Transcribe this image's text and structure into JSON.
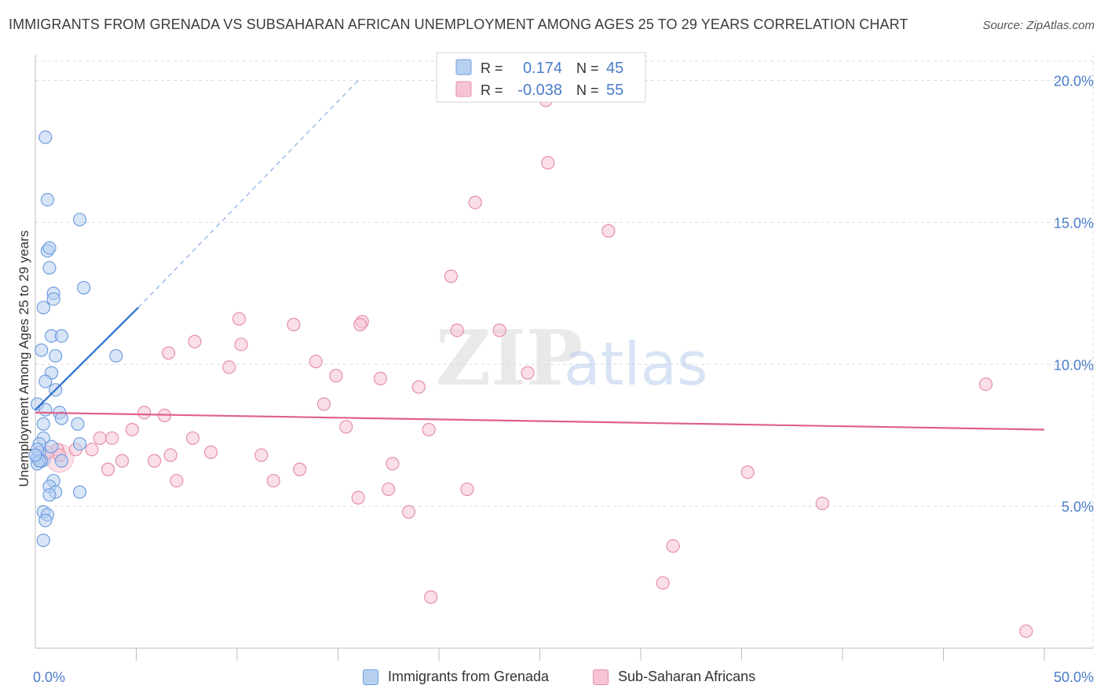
{
  "title": "IMMIGRANTS FROM GRENADA VS SUBSAHARAN AFRICAN UNEMPLOYMENT AMONG AGES 25 TO 29 YEARS CORRELATION CHART",
  "source": "Source: ZipAtlas.com",
  "watermark": {
    "zip": "ZIP",
    "atlas": "atlas"
  },
  "colors": {
    "blue_fill": "#b8d0f0",
    "blue_stroke": "#6f9ee0",
    "blue_line": "#2f6fd0",
    "pink_fill": "#f6c4d3",
    "pink_stroke": "#e58fab",
    "pink_line": "#e0608a",
    "tick_label": "#4a7cc9",
    "grid": "#dcdcdc"
  },
  "stats_legend": {
    "rows": [
      {
        "r_label": "R =",
        "r_value": "0.174",
        "n_label": "N =",
        "n_value": "45",
        "series": "blue"
      },
      {
        "r_label": "R =",
        "r_value": "-0.038",
        "n_label": "N =",
        "n_value": "55",
        "series": "pink"
      }
    ]
  },
  "bottom_legend": [
    {
      "label": "Immigrants from Grenada",
      "series": "blue"
    },
    {
      "label": "Sub-Saharan Africans",
      "series": "pink"
    }
  ],
  "chart_data": {
    "type": "scatter",
    "title": "IMMIGRANTS FROM GRENADA VS SUBSAHARAN AFRICAN UNEMPLOYMENT AMONG AGES 25 TO 29 YEARS CORRELATION CHART",
    "xlabel": "",
    "ylabel": "Unemployment Among Ages 25 to 29 years",
    "xlim": [
      0,
      50
    ],
    "ylim": [
      0,
      20.9
    ],
    "x_tick_labels": [
      "0.0%",
      "50.0%"
    ],
    "y_ticks": [
      5,
      10,
      15,
      20
    ],
    "y_tick_labels": [
      "5.0%",
      "10.0%",
      "15.0%",
      "20.0%"
    ],
    "grid": true,
    "legend_position": "top-center",
    "series": [
      {
        "name": "Immigrants from Grenada",
        "color": "#6f9ee0",
        "r": 0.174,
        "n": 45,
        "points": [
          [
            0.5,
            18.0
          ],
          [
            0.6,
            15.8
          ],
          [
            2.2,
            15.1
          ],
          [
            0.6,
            14.0
          ],
          [
            0.7,
            14.1
          ],
          [
            0.7,
            13.4
          ],
          [
            2.4,
            12.7
          ],
          [
            0.9,
            12.5
          ],
          [
            0.9,
            12.3
          ],
          [
            0.4,
            12.0
          ],
          [
            0.8,
            11.0
          ],
          [
            1.3,
            11.0
          ],
          [
            4.0,
            10.3
          ],
          [
            0.3,
            10.5
          ],
          [
            1.0,
            10.3
          ],
          [
            0.8,
            9.7
          ],
          [
            0.5,
            9.4
          ],
          [
            1.0,
            9.1
          ],
          [
            0.1,
            8.6
          ],
          [
            0.5,
            8.4
          ],
          [
            1.2,
            8.3
          ],
          [
            1.3,
            8.1
          ],
          [
            2.1,
            7.9
          ],
          [
            0.4,
            7.9
          ],
          [
            0.4,
            7.4
          ],
          [
            0.2,
            7.2
          ],
          [
            0.8,
            7.1
          ],
          [
            0.2,
            6.9
          ],
          [
            2.2,
            7.2
          ],
          [
            0.1,
            6.7
          ],
          [
            0.3,
            6.6
          ],
          [
            0.1,
            6.5
          ],
          [
            1.3,
            6.6
          ],
          [
            0.2,
            6.6
          ],
          [
            0.9,
            5.9
          ],
          [
            0.7,
            5.7
          ],
          [
            1.0,
            5.5
          ],
          [
            0.7,
            5.4
          ],
          [
            2.2,
            5.5
          ],
          [
            0.4,
            4.8
          ],
          [
            0.6,
            4.7
          ],
          [
            0.5,
            4.5
          ],
          [
            0.4,
            3.8
          ],
          [
            0.1,
            7.0
          ],
          [
            0.0,
            6.8
          ]
        ],
        "trend": {
          "x": [
            0.0,
            5.1
          ],
          "y": [
            8.4,
            12.0
          ]
        },
        "trend_extension": {
          "x": [
            5.1,
            16.0
          ],
          "y": [
            12.0,
            20.0
          ]
        }
      },
      {
        "name": "Sub-Saharan Africans",
        "color": "#e58fab",
        "r": -0.038,
        "n": 55,
        "points": [
          [
            25.3,
            19.3
          ],
          [
            25.4,
            17.1
          ],
          [
            21.8,
            15.7
          ],
          [
            28.4,
            14.7
          ],
          [
            20.6,
            13.1
          ],
          [
            10.1,
            11.6
          ],
          [
            16.2,
            11.5
          ],
          [
            12.8,
            11.4
          ],
          [
            16.1,
            11.4
          ],
          [
            20.9,
            11.2
          ],
          [
            7.9,
            10.8
          ],
          [
            6.6,
            10.4
          ],
          [
            10.2,
            10.7
          ],
          [
            9.6,
            9.9
          ],
          [
            23.0,
            11.2
          ],
          [
            13.9,
            10.1
          ],
          [
            24.4,
            9.7
          ],
          [
            14.9,
            9.6
          ],
          [
            17.1,
            9.5
          ],
          [
            19.0,
            9.2
          ],
          [
            47.1,
            9.3
          ],
          [
            14.3,
            8.6
          ],
          [
            5.4,
            8.3
          ],
          [
            6.4,
            8.2
          ],
          [
            15.4,
            7.8
          ],
          [
            19.5,
            7.7
          ],
          [
            4.8,
            7.7
          ],
          [
            3.2,
            7.4
          ],
          [
            3.8,
            7.4
          ],
          [
            7.8,
            7.4
          ],
          [
            1.1,
            7.0
          ],
          [
            2.0,
            7.0
          ],
          [
            8.7,
            6.9
          ],
          [
            2.8,
            7.0
          ],
          [
            6.7,
            6.8
          ],
          [
            11.2,
            6.8
          ],
          [
            4.3,
            6.6
          ],
          [
            5.9,
            6.6
          ],
          [
            1.2,
            6.8
          ],
          [
            0.6,
            6.9
          ],
          [
            17.7,
            6.5
          ],
          [
            3.6,
            6.3
          ],
          [
            13.1,
            6.3
          ],
          [
            35.3,
            6.2
          ],
          [
            7.0,
            5.9
          ],
          [
            11.8,
            5.9
          ],
          [
            17.5,
            5.6
          ],
          [
            21.4,
            5.6
          ],
          [
            16.0,
            5.3
          ],
          [
            39.0,
            5.1
          ],
          [
            18.5,
            4.8
          ],
          [
            31.6,
            3.6
          ],
          [
            31.1,
            2.3
          ],
          [
            19.6,
            1.8
          ],
          [
            49.1,
            0.6
          ]
        ],
        "trend": {
          "x": [
            0.0,
            50.0
          ],
          "y": [
            8.3,
            7.7
          ]
        }
      }
    ]
  }
}
